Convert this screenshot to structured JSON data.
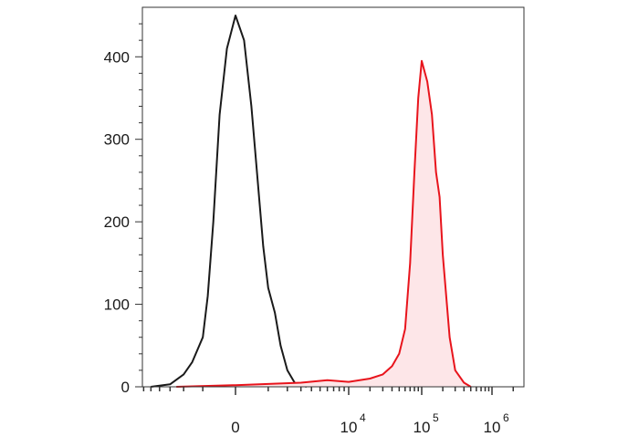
{
  "chart_data": {
    "type": "area",
    "title": "",
    "xlabel": "",
    "ylabel": "",
    "x_scale": "biexponential",
    "ylim": [
      0,
      460
    ],
    "y_ticks": [
      {
        "value": 0,
        "label": "0"
      },
      {
        "value": 100,
        "label": "100"
      },
      {
        "value": 200,
        "label": "200"
      },
      {
        "value": 300,
        "label": "300"
      },
      {
        "value": 400,
        "label": "400"
      }
    ],
    "x_ticks": [
      {
        "value": 0,
        "base": "0",
        "exp": ""
      },
      {
        "value": 10000,
        "base": "10",
        "exp": "4"
      },
      {
        "value": 100000,
        "base": "10",
        "exp": "5"
      },
      {
        "value": 1000000,
        "base": "10",
        "exp": "6"
      }
    ],
    "grid": false,
    "legend": "none",
    "series": [
      {
        "color": "#1a1a1a",
        "filled": false,
        "x": [
          -5000,
          -3000,
          -2000,
          -1500,
          -1000,
          -800,
          -600,
          -400,
          -200,
          0,
          200,
          400,
          600,
          800,
          1000,
          1300,
          1600,
          2000,
          2500,
          3000,
          3500
        ],
        "values": [
          0,
          3,
          15,
          30,
          60,
          110,
          200,
          330,
          410,
          450,
          420,
          340,
          250,
          170,
          120,
          90,
          50,
          20,
          5,
          2,
          0
        ]
      },
      {
        "color": "#e8141c",
        "filled": true,
        "x": [
          -2500,
          0,
          3000,
          6000,
          10000,
          20000,
          30000,
          40000,
          50000,
          60000,
          70000,
          80000,
          90000,
          100000,
          120000,
          140000,
          160000,
          180000,
          200000,
          250000,
          300000,
          400000,
          500000
        ],
        "values": [
          0,
          2,
          5,
          8,
          6,
          10,
          15,
          25,
          40,
          70,
          150,
          260,
          350,
          395,
          370,
          330,
          260,
          230,
          160,
          60,
          20,
          5,
          0
        ]
      }
    ]
  }
}
